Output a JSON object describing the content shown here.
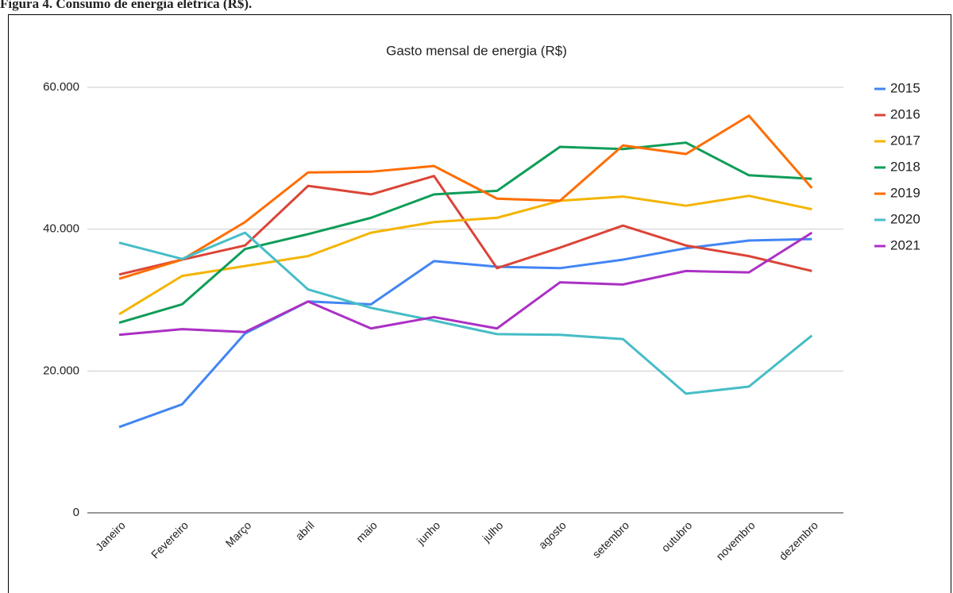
{
  "caption": "Figura 4. Consumo de energia elétrica (R$).",
  "chart_data": {
    "type": "line",
    "title": "Gasto mensal de energia (R$)",
    "categories": [
      "Janeiro",
      "Fevereiro",
      "Março",
      "abril",
      "maio",
      "junho",
      "julho",
      "agosto",
      "setembro",
      "outubro",
      "novembro",
      "dezembro"
    ],
    "series": [
      {
        "name": "2015",
        "color": "#4285f4",
        "values": [
          12100,
          15300,
          25300,
          29800,
          29400,
          35500,
          34700,
          34500,
          35700,
          37300,
          38400,
          38600
        ]
      },
      {
        "name": "2016",
        "color": "#db4437",
        "values": [
          33600,
          35700,
          37700,
          46100,
          44900,
          47500,
          34500,
          37400,
          40500,
          37700,
          36200,
          34100
        ]
      },
      {
        "name": "2017",
        "color": "#f4b400",
        "values": [
          28000,
          33400,
          34800,
          36200,
          39500,
          41000,
          41600,
          44000,
          44600,
          43300,
          44700,
          42800
        ]
      },
      {
        "name": "2018",
        "color": "#0f9d58",
        "values": [
          26800,
          29400,
          37200,
          39300,
          41600,
          44900,
          45400,
          51600,
          51300,
          52200,
          47600,
          47100
        ]
      },
      {
        "name": "2019",
        "color": "#ff6d01",
        "values": [
          33000,
          35700,
          41000,
          48000,
          48100,
          48900,
          44300,
          44000,
          51800,
          50600,
          56000,
          45800
        ]
      },
      {
        "name": "2020",
        "color": "#46bdc6",
        "values": [
          38100,
          35800,
          39500,
          31500,
          28900,
          27100,
          25200,
          25100,
          24500,
          16800,
          17800,
          25000
        ]
      },
      {
        "name": "2021",
        "color": "#ab30c4",
        "values": [
          25100,
          25900,
          25500,
          29800,
          26000,
          27600,
          26000,
          32500,
          32200,
          34100,
          33900,
          39500
        ]
      }
    ],
    "ylim": [
      0,
      60000
    ],
    "yticks": [
      0,
      {
        "value": 20000,
        "label": "20.000"
      },
      {
        "value": 40000,
        "label": "40.000"
      },
      {
        "value": 60000,
        "label": "60.000"
      }
    ],
    "grid": true,
    "legend": "right"
  }
}
